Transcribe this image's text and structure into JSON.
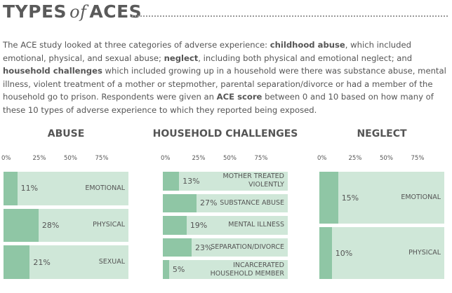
{
  "header": {
    "title_words": [
      "TYPES",
      "of",
      "ACES"
    ]
  },
  "intro": [
    {
      "text": "The ACE study looked at three categories of adverse experience: ",
      "bold": false
    },
    {
      "text": "childhood abuse",
      "bold": true
    },
    {
      "text": ", which included emotional, physical, and sexual abuse; ",
      "bold": false
    },
    {
      "text": "neglect",
      "bold": true
    },
    {
      "text": ", including both physical and emotional neglect; and ",
      "bold": false
    },
    {
      "text": "household challenges",
      "bold": true
    },
    {
      "text": " which included growing up in a household were there was substance abuse, mental illness, violent treatment of a mother or stepmother, parental separation/divorce or had a member of the household go to prison. Respondents were given an ",
      "bold": false
    },
    {
      "text": "ACE score",
      "bold": true
    },
    {
      "text": " between 0 and 10 based on how many of these 10 types of adverse experience to which they reported being exposed.",
      "bold": false
    }
  ],
  "chart_data": [
    {
      "type": "bar",
      "orientation": "horizontal",
      "title": "ABUSE",
      "categories": [
        "EMOTIONAL",
        "PHYSICAL",
        "SEXUAL"
      ],
      "values": [
        11,
        28,
        21
      ],
      "value_labels": [
        "11%",
        "28%",
        "21%"
      ],
      "color": "#8fc6a5",
      "track_color": "#cfe7d8",
      "xlim": [
        0,
        100
      ],
      "xticks": [
        {
          "value": 0,
          "label": "0%"
        },
        {
          "value": 25,
          "label": "25%"
        },
        {
          "value": 50,
          "label": "50%"
        },
        {
          "value": 75,
          "label": "75%"
        }
      ]
    },
    {
      "type": "bar",
      "orientation": "horizontal",
      "title": "HOUSEHOLD CHALLENGES",
      "categories": [
        "MOTHER TREATED VIOLENTLY",
        "SUBSTANCE ABUSE",
        "MENTAL ILLNESS",
        "SEPARATION/DIVORCE",
        "INCARCERATED HOUSEHOLD MEMBER"
      ],
      "values": [
        13,
        27,
        19,
        23,
        5
      ],
      "value_labels": [
        "13%",
        "27%",
        "19%",
        "23%",
        "5%"
      ],
      "color": "#8fc6a5",
      "track_color": "#cfe7d8",
      "xlim": [
        0,
        100
      ],
      "xticks": [
        {
          "value": 0,
          "label": "0%"
        },
        {
          "value": 25,
          "label": "25%"
        },
        {
          "value": 50,
          "label": "50%"
        },
        {
          "value": 75,
          "label": "75%"
        }
      ]
    },
    {
      "type": "bar",
      "orientation": "horizontal",
      "title": "NEGLECT",
      "categories": [
        "EMOTIONAL",
        "PHYSICAL"
      ],
      "values": [
        15,
        10
      ],
      "value_labels": [
        "15%",
        "10%"
      ],
      "color": "#8fc6a5",
      "track_color": "#cfe7d8",
      "xlim": [
        0,
        100
      ],
      "xticks": [
        {
          "value": 0,
          "label": "0%"
        },
        {
          "value": 25,
          "label": "25%"
        },
        {
          "value": 50,
          "label": "50%"
        },
        {
          "value": 75,
          "label": "75%"
        }
      ]
    }
  ]
}
